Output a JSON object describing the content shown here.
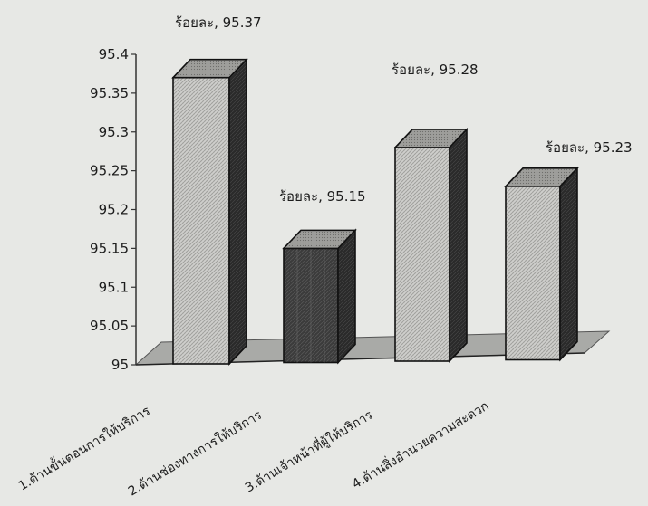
{
  "chart_data": {
    "type": "bar",
    "title": "",
    "xlabel": "",
    "ylabel": "",
    "categories": [
      "1.ด้านขั้นตอนการให้บริการ",
      "2.ด้านช่องทางการให้บริการ",
      "3.ด้านเจ้าหน้าที่ผู้ให้บริการ",
      "4.ด้านสิ่งอำนวยความสะดวก"
    ],
    "values": [
      95.37,
      95.15,
      95.28,
      95.23
    ],
    "data_labels": [
      "ร้อยละ, 95.37",
      "ร้อยละ, 95.15",
      "ร้อยละ, 95.28",
      "ร้อยละ, 95.23"
    ],
    "ylim": [
      95,
      95.4
    ],
    "yticks": [
      "95",
      "95.05",
      "95.1",
      "95.15",
      "95.2",
      "95.25",
      "95.3",
      "95.35",
      "95.4"
    ],
    "grid": false,
    "legend": "none",
    "style": "3d-column",
    "colors": {
      "bar_light": "#c9c9c6",
      "bar_dark": "#3a3a3a",
      "bar_side": "#2b2b2b",
      "floor": "#a9aaa7",
      "axis": "#333333"
    }
  }
}
